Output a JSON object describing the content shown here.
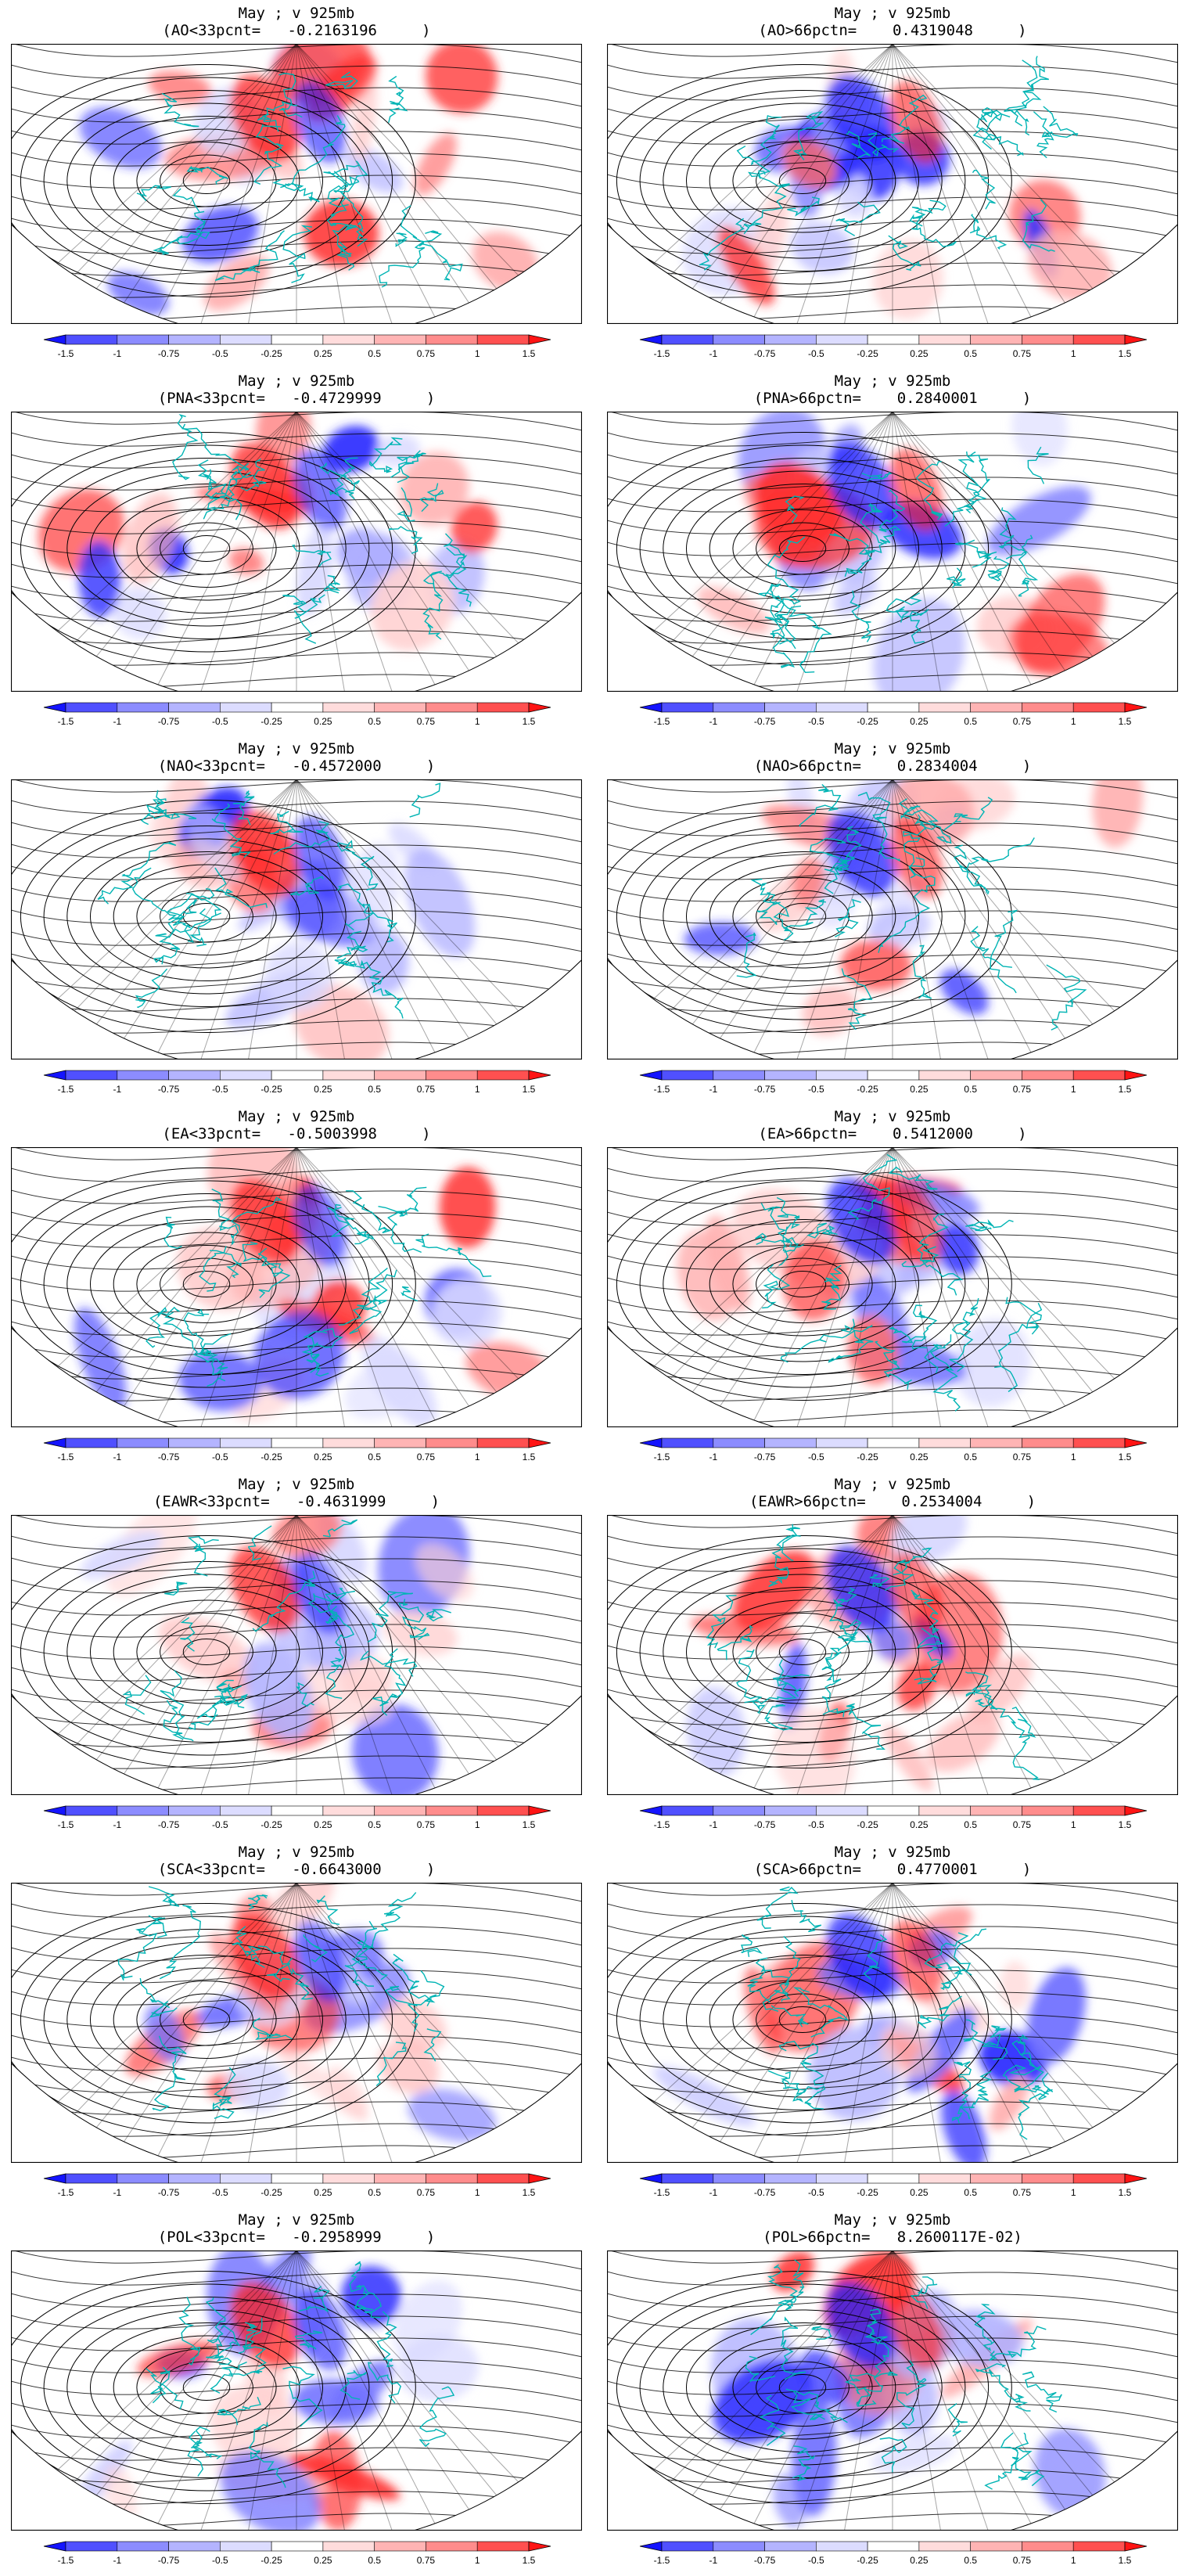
{
  "panels": [
    {
      "line1": "May ; v 925mb",
      "line2": "(AO<33pcnt=   -0.2163196     )"
    },
    {
      "line1": "May ; v 925mb",
      "line2": "(AO>66pctn=    0.4319048     )"
    },
    {
      "line1": "May ; v 925mb",
      "line2": "(PNA<33pcnt=   -0.4729999     )"
    },
    {
      "line1": "May ; v 925mb",
      "line2": "(PNA>66pctn=    0.2840001     )"
    },
    {
      "line1": "May ; v 925mb",
      "line2": "(NAO<33pcnt=   -0.4572000     )"
    },
    {
      "line1": "May ; v 925mb",
      "line2": "(NAO>66pctn=    0.2834004     )"
    },
    {
      "line1": "May ; v 925mb",
      "line2": "(EA<33pcnt=   -0.5003998     )"
    },
    {
      "line1": "May ; v 925mb",
      "line2": "(EA>66pctn=    0.5412000     )"
    },
    {
      "line1": "May ; v 925mb",
      "line2": "(EAWR<33pcnt=   -0.4631999     )"
    },
    {
      "line1": "May ; v 925mb",
      "line2": "(EAWR>66pctn=    0.2534004     )"
    },
    {
      "line1": "May ; v 925mb",
      "line2": "(SCA<33pcnt=   -0.6643000     )"
    },
    {
      "line1": "May ; v 925mb",
      "line2": "(SCA>66pctn=    0.4770001     )"
    },
    {
      "line1": "May ; v 925mb",
      "line2": "(POL<33pcnt=   -0.2958999     )"
    },
    {
      "line1": "May ; v 925mb",
      "line2": "(POL>66pctn=   8.2600117E-02)"
    }
  ],
  "colorbar": {
    "labels": [
      "-1.5",
      "-1",
      "-0.75",
      "-0.5",
      "-0.25",
      "0.25",
      "0.5",
      "0.75",
      "1",
      "1.5"
    ],
    "colors": [
      "#1414ff",
      "#5050ff",
      "#8c8cff",
      "#b4b4ff",
      "#dcdcff",
      "#ffffff",
      "#ffdcdc",
      "#ffb4b4",
      "#ff8c8c",
      "#ff5050",
      "#ff1414"
    ]
  },
  "map": {
    "stream_color": "#000000",
    "coast_color": "#00b4b4",
    "positive_color": "#ff2020",
    "negative_color": "#2020ff"
  }
}
